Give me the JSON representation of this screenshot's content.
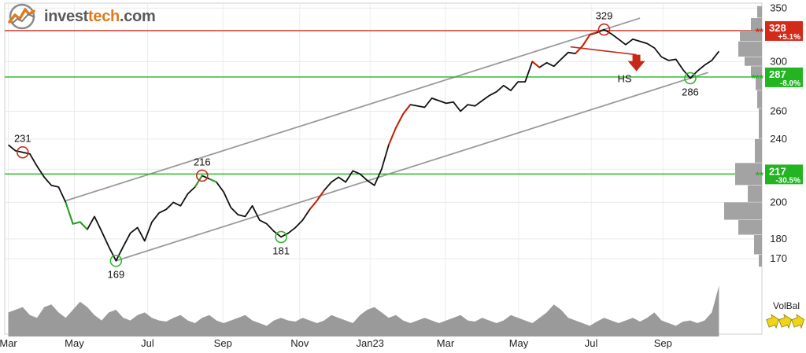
{
  "brand": {
    "part1": "invest",
    "part2": "tech",
    "part3": ".com"
  },
  "chart_data": {
    "type": "line",
    "series": [
      {
        "values": [
          [
            0,
            236
          ],
          [
            1,
            232
          ],
          [
            2,
            231
          ],
          [
            3,
            230
          ],
          [
            4,
            222
          ],
          [
            5,
            215
          ],
          [
            6,
            210
          ],
          [
            7,
            209
          ],
          [
            8,
            200
          ],
          [
            9,
            188
          ],
          [
            10,
            189
          ],
          [
            11,
            185
          ],
          [
            12,
            192
          ],
          [
            13,
            184
          ],
          [
            14,
            176
          ],
          [
            15,
            169
          ],
          [
            16,
            176
          ],
          [
            17,
            183
          ],
          [
            18,
            186
          ],
          [
            19,
            179
          ],
          [
            20,
            189
          ],
          [
            21,
            194
          ],
          [
            22,
            196
          ],
          [
            23,
            200
          ],
          [
            24,
            198
          ],
          [
            25,
            205
          ],
          [
            26,
            209
          ],
          [
            27,
            216
          ],
          [
            28,
            214
          ],
          [
            29,
            212
          ],
          [
            30,
            206
          ],
          [
            31,
            197
          ],
          [
            32,
            193
          ],
          [
            33,
            192
          ],
          [
            34,
            198
          ],
          [
            35,
            190
          ],
          [
            36,
            188
          ],
          [
            37,
            184
          ],
          [
            38,
            181
          ],
          [
            39,
            183
          ],
          [
            40,
            186
          ],
          [
            41,
            190
          ],
          [
            42,
            196
          ],
          [
            43,
            201
          ],
          [
            44,
            207
          ],
          [
            45,
            212
          ],
          [
            46,
            215
          ],
          [
            47,
            212
          ],
          [
            48,
            219
          ],
          [
            49,
            217
          ],
          [
            50,
            213
          ],
          [
            51,
            210
          ],
          [
            52,
            220
          ],
          [
            53,
            236
          ],
          [
            54,
            248
          ],
          [
            55,
            258
          ],
          [
            56,
            265
          ],
          [
            57,
            264
          ],
          [
            58,
            263
          ],
          [
            59,
            270
          ],
          [
            60,
            268
          ],
          [
            61,
            266
          ],
          [
            62,
            267
          ],
          [
            63,
            260
          ],
          [
            64,
            265
          ],
          [
            65,
            264
          ],
          [
            66,
            268
          ],
          [
            67,
            272
          ],
          [
            68,
            275
          ],
          [
            69,
            280
          ],
          [
            70,
            276
          ],
          [
            71,
            283
          ],
          [
            72,
            283
          ],
          [
            73,
            300
          ],
          [
            74,
            295
          ],
          [
            75,
            299
          ],
          [
            76,
            296
          ],
          [
            77,
            302
          ],
          [
            78,
            308
          ],
          [
            79,
            307
          ],
          [
            80,
            314
          ],
          [
            81,
            324
          ],
          [
            82,
            326
          ],
          [
            83,
            329
          ],
          [
            84,
            325
          ],
          [
            85,
            320
          ],
          [
            86,
            315
          ],
          [
            87,
            320
          ],
          [
            88,
            318
          ],
          [
            89,
            316
          ],
          [
            90,
            312
          ],
          [
            91,
            304
          ],
          [
            92,
            301
          ],
          [
            93,
            302
          ],
          [
            94,
            293
          ],
          [
            95,
            286
          ],
          [
            96,
            292
          ],
          [
            97,
            297
          ],
          [
            98,
            301
          ],
          [
            99,
            309
          ]
        ]
      }
    ],
    "x_tick_labels": [
      "Mar",
      "May",
      "Jul",
      "Sep",
      "Nov",
      "Jan23",
      "Mar",
      "May",
      "Jul",
      "Sep"
    ],
    "x_tick_positions": [
      0,
      9.2,
      19.4,
      29.9,
      40.6,
      50.4,
      60.9,
      71.1,
      81.2,
      91.2
    ],
    "y_tick_labels": [
      "350",
      "300",
      "260",
      "240",
      "220",
      "200",
      "180",
      "170"
    ],
    "y_tick_values": [
      350,
      300,
      260,
      240,
      220,
      200,
      180,
      170
    ],
    "y_scale": "log",
    "ylim": [
      164,
      355
    ],
    "xlim": [
      -0.5,
      99.5
    ],
    "annotations": [
      {
        "label": "231",
        "x": 2,
        "y": 231,
        "type": "top"
      },
      {
        "label": "169",
        "x": 15,
        "y": 169,
        "type": "bottom"
      },
      {
        "label": "216",
        "x": 27,
        "y": 216,
        "type": "top"
      },
      {
        "label": "181",
        "x": 38,
        "y": 181,
        "type": "bottom"
      },
      {
        "label": "329",
        "x": 83,
        "y": 329,
        "type": "top"
      },
      {
        "label": "286",
        "x": 95,
        "y": 286,
        "type": "bottom"
      }
    ],
    "pattern_label": "HS",
    "levels": [
      {
        "value": 328,
        "label": "328",
        "change": "+5.1%",
        "color": "#d42a1a",
        "stars": "**"
      },
      {
        "value": 287,
        "label": "287",
        "change": "-8.0%",
        "color": "#22b521",
        "stars": "***"
      },
      {
        "value": 217,
        "label": "217",
        "change": "-30.5%",
        "color": "#22b521",
        "stars": "**"
      }
    ],
    "volume_label": "VolBal",
    "grid": true
  },
  "colors": {
    "price": "#111111",
    "up_signal": "#cc2200",
    "down_signal": "#22a022",
    "resistance": "#c8281a",
    "support": "#2fb82f",
    "channel": "#9a9a9a",
    "volume": "#9a9a9a",
    "arrow": "#c8281a"
  }
}
